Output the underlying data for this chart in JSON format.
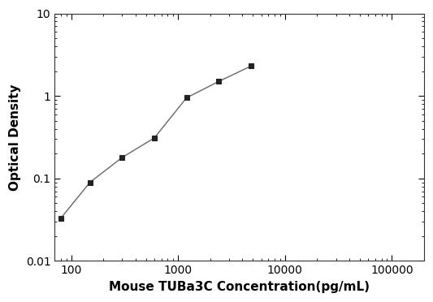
{
  "x": [
    80,
    150,
    300,
    600,
    1200,
    2400,
    4800
  ],
  "y": [
    0.033,
    0.09,
    0.18,
    0.31,
    0.95,
    1.5,
    2.3
  ],
  "xlim": [
    70,
    200000
  ],
  "ylim": [
    0.01,
    10
  ],
  "xlabel": "Mouse TUBa3C Concentration(pg/mL)",
  "ylabel": "Optical Density",
  "xticks": [
    100,
    1000,
    10000,
    100000
  ],
  "xticklabels": [
    "100",
    "1000",
    "10000",
    "100000"
  ],
  "yticks": [
    0.01,
    0.1,
    1,
    10
  ],
  "yticklabels": [
    "0.01",
    "0.1",
    "1",
    "10"
  ],
  "line_color": "#666666",
  "marker_color": "#222222",
  "marker": "s",
  "marker_size": 5,
  "line_width": 1.0,
  "xlabel_fontsize": 11,
  "ylabel_fontsize": 11,
  "tick_fontsize": 10,
  "background_color": "#ffffff"
}
